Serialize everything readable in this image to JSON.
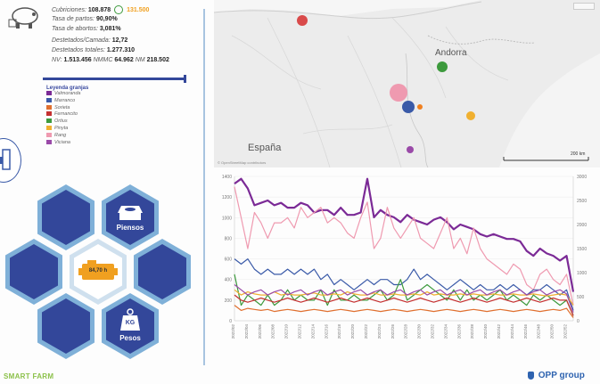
{
  "kpis": {
    "cubriciones_label": "Cubriciones:",
    "cubriciones_value": "108.878",
    "cubriciones_target": "131.500",
    "tasa_partos_label": "Tasa de partos:",
    "tasa_partos_value": "90,90%",
    "tasa_abortos_label": "Tasa de abortos:",
    "tasa_abortos_value": "3,081%",
    "destetados_camada_label": "Destetados/Camada:",
    "destetados_camada_value": "12,72",
    "destetados_totales_label": "Destetados totales:",
    "destetados_totales_value": "1.277.310",
    "nv_label": "NV:",
    "nv_value": "1.513.456",
    "nmmc_label": "NMMC",
    "nmmc_value": "64.962",
    "nm_label": "NM",
    "nm_value": "218.502"
  },
  "legend": {
    "title": "Leyenda granjas",
    "items": [
      {
        "label": "Valmoranda",
        "color": "#7b2a96"
      },
      {
        "label": "Marranco",
        "color": "#3a5aa8"
      },
      {
        "label": "Sorieta",
        "color": "#e07030"
      },
      {
        "label": "Fernancito",
        "color": "#c53030"
      },
      {
        "label": "Ortius",
        "color": "#3d9a3d"
      },
      {
        "label": "Pinyta",
        "color": "#f0b030"
      },
      {
        "label": "Rang",
        "color": "#ef9ab0"
      },
      {
        "label": "Viciana",
        "color": "#9a4aa8"
      }
    ]
  },
  "hexes": {
    "piensos_label": "Piensos",
    "pesos_label": "Pesos",
    "pesos_icon_text": "KG",
    "engine_value": "84,70 h"
  },
  "map": {
    "label_andorra": "Andorra",
    "label_espana": "España",
    "scale_label": "200 km",
    "attribution": "© OpenStreetMap contributors"
  },
  "footer": {
    "left": "SMART FARM",
    "right": "OPP group"
  },
  "colors": {
    "accent_blue": "#33479a",
    "hex_border": "#7fb0d8",
    "target_orange": "#f0a020",
    "smartfarm_green": "#8cc14a"
  },
  "chart_data": {
    "type": "line",
    "x": [
      "2022/02",
      "2022/03",
      "2022/04",
      "2022/05",
      "2022/06",
      "2022/07",
      "2022/08",
      "2022/09",
      "2022/10",
      "2022/11",
      "2022/12",
      "2022/13",
      "2022/14",
      "2022/15",
      "2022/16",
      "2022/17",
      "2022/18",
      "2022/19",
      "2022/20",
      "2022/21",
      "2022/22",
      "2022/23",
      "2022/24",
      "2022/25",
      "2022/26",
      "2022/27",
      "2022/28",
      "2022/29",
      "2022/30",
      "2022/31",
      "2022/32",
      "2022/33",
      "2022/34",
      "2022/35",
      "2022/36",
      "2022/37",
      "2022/38",
      "2022/39",
      "2022/40",
      "2022/41",
      "2022/42",
      "2022/43",
      "2022/44",
      "2022/45",
      "2022/46",
      "2022/47",
      "2022/48",
      "2022/49",
      "2022/50",
      "2022/51",
      "2022/52",
      "2022/53"
    ],
    "ylim_left": [
      0,
      1400
    ],
    "ylim_right": [
      0,
      3000
    ],
    "yticks_left": [
      0,
      200,
      400,
      600,
      800,
      1000,
      1200,
      1400
    ],
    "yticks_right": [
      0,
      500,
      1000,
      1500,
      2000,
      2500,
      3000
    ],
    "series": [
      {
        "color": "#7b2a96",
        "axis": "right",
        "width": 2.2,
        "values": [
          2850,
          2950,
          2750,
          2400,
          2450,
          2500,
          2400,
          2450,
          2350,
          2350,
          2450,
          2400,
          2250,
          2300,
          2300,
          2200,
          2350,
          2200,
          2200,
          2250,
          2950,
          2150,
          2300,
          2200,
          2150,
          2050,
          2200,
          2100,
          2050,
          2000,
          2100,
          2150,
          2050,
          1900,
          2000,
          1950,
          1900,
          1800,
          1750,
          1800,
          1750,
          1700,
          1700,
          1650,
          1450,
          1350,
          1500,
          1400,
          1350,
          1250,
          1350,
          600
        ]
      },
      {
        "color": "#ef9ab0",
        "axis": "left",
        "width": 1.2,
        "values": [
          1300,
          1000,
          700,
          1050,
          950,
          800,
          950,
          950,
          1000,
          900,
          1100,
          1000,
          1050,
          1100,
          950,
          1000,
          950,
          850,
          800,
          1000,
          1150,
          700,
          800,
          1100,
          900,
          800,
          900,
          1000,
          800,
          750,
          700,
          850,
          1000,
          700,
          800,
          650,
          900,
          700,
          600,
          550,
          500,
          450,
          550,
          500,
          350,
          300,
          450,
          500,
          400,
          350,
          450,
          150
        ]
      },
      {
        "color": "#3a5aa8",
        "axis": "left",
        "width": 1.2,
        "values": [
          600,
          550,
          600,
          500,
          450,
          500,
          450,
          450,
          500,
          450,
          500,
          450,
          500,
          400,
          450,
          350,
          400,
          350,
          300,
          350,
          400,
          350,
          400,
          400,
          350,
          350,
          400,
          500,
          400,
          450,
          400,
          350,
          300,
          350,
          400,
          350,
          300,
          350,
          300,
          300,
          350,
          300,
          350,
          300,
          250,
          300,
          300,
          350,
          300,
          250,
          300,
          100
        ]
      },
      {
        "color": "#3d9a3d",
        "axis": "left",
        "width": 1.2,
        "values": [
          450,
          150,
          250,
          200,
          150,
          250,
          150,
          200,
          300,
          200,
          250,
          200,
          200,
          300,
          150,
          300,
          200,
          200,
          250,
          200,
          200,
          250,
          300,
          200,
          250,
          400,
          200,
          250,
          300,
          350,
          300,
          250,
          200,
          300,
          200,
          300,
          200,
          250,
          200,
          250,
          300,
          200,
          250,
          200,
          150,
          250,
          200,
          250,
          200,
          150,
          200,
          50
        ]
      },
      {
        "color": "#f0b030",
        "axis": "left",
        "width": 1.2,
        "values": [
          300,
          250,
          280,
          260,
          250,
          250,
          280,
          250,
          260,
          250,
          250,
          260,
          270,
          250,
          250,
          260,
          250,
          280,
          260,
          250,
          250,
          270,
          250,
          250,
          260,
          250,
          250,
          260,
          250,
          280,
          250,
          260,
          250,
          250,
          260,
          250,
          260,
          250,
          250,
          260,
          250,
          250,
          260,
          250,
          250,
          260,
          250,
          240,
          250,
          260,
          250,
          150
        ]
      },
      {
        "color": "#e07030",
        "axis": "left",
        "width": 1.2,
        "values": [
          150,
          100,
          120,
          110,
          100,
          110,
          90,
          100,
          110,
          100,
          90,
          100,
          110,
          100,
          90,
          100,
          110,
          100,
          90,
          100,
          110,
          100,
          90,
          100,
          110,
          100,
          90,
          100,
          110,
          100,
          90,
          100,
          110,
          100,
          90,
          100,
          110,
          100,
          90,
          100,
          110,
          100,
          90,
          100,
          110,
          100,
          90,
          100,
          110,
          100,
          120,
          30
        ]
      },
      {
        "color": "#c53030",
        "axis": "left",
        "width": 1.2,
        "values": [
          250,
          200,
          180,
          200,
          220,
          200,
          180,
          200,
          220,
          200,
          180,
          200,
          220,
          200,
          180,
          200,
          220,
          200,
          180,
          200,
          220,
          200,
          180,
          200,
          220,
          200,
          180,
          200,
          220,
          200,
          180,
          200,
          220,
          200,
          180,
          200,
          220,
          200,
          180,
          200,
          220,
          200,
          180,
          200,
          220,
          200,
          180,
          200,
          220,
          200,
          200,
          50
        ]
      },
      {
        "color": "#9a4aa8",
        "axis": "left",
        "width": 1.2,
        "values": [
          350,
          300,
          250,
          280,
          300,
          250,
          280,
          300,
          250,
          280,
          300,
          250,
          280,
          300,
          250,
          280,
          300,
          250,
          280,
          300,
          250,
          280,
          300,
          250,
          280,
          300,
          250,
          280,
          300,
          250,
          280,
          300,
          250,
          280,
          300,
          250,
          280,
          300,
          250,
          280,
          300,
          250,
          280,
          300,
          250,
          280,
          300,
          250,
          280,
          300,
          260,
          80
        ]
      }
    ]
  }
}
